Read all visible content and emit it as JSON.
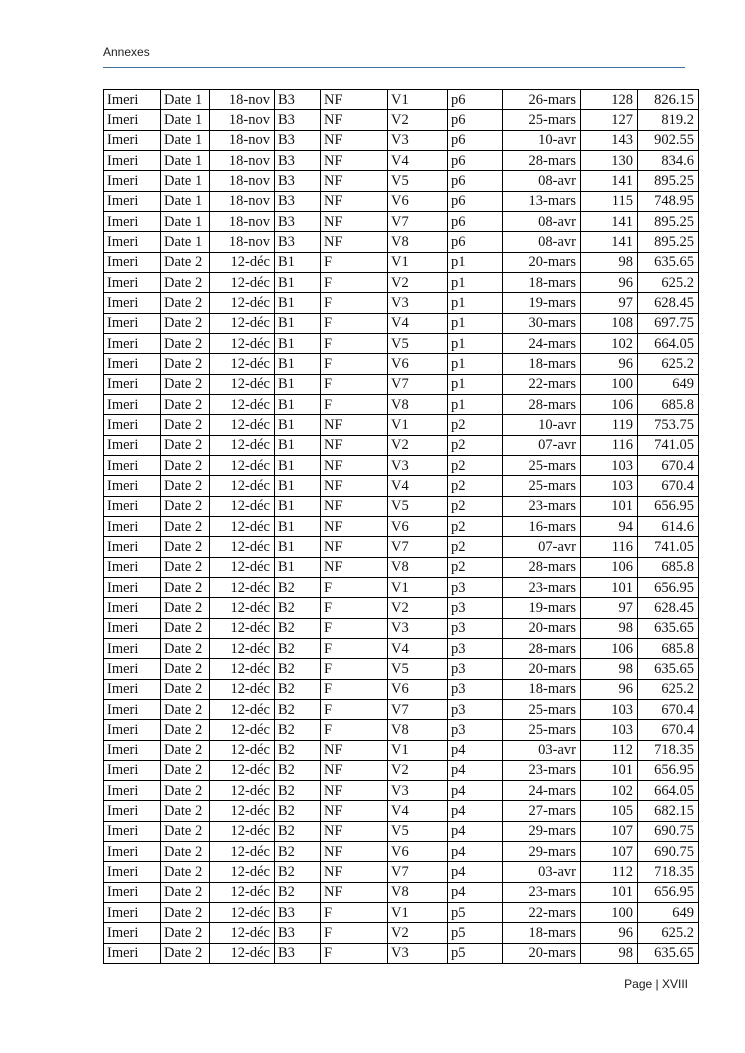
{
  "header": {
    "title": "Annexes"
  },
  "footer": {
    "text": "Page | XVIII"
  },
  "colors": {
    "header_rule": "#44719d",
    "table_border": "#000000",
    "text": "#111111",
    "page_background": "#ffffff"
  },
  "table": {
    "rows": [
      [
        "Imeri",
        "Date 1",
        "18-nov",
        "B3",
        "NF",
        "V1",
        "p6",
        "26-mars",
        "128",
        "826.15"
      ],
      [
        "Imeri",
        "Date 1",
        "18-nov",
        "B3",
        "NF",
        "V2",
        "p6",
        "25-mars",
        "127",
        "819.2"
      ],
      [
        "Imeri",
        "Date 1",
        "18-nov",
        "B3",
        "NF",
        "V3",
        "p6",
        "10-avr",
        "143",
        "902.55"
      ],
      [
        "Imeri",
        "Date 1",
        "18-nov",
        "B3",
        "NF",
        "V4",
        "p6",
        "28-mars",
        "130",
        "834.6"
      ],
      [
        "Imeri",
        "Date 1",
        "18-nov",
        "B3",
        "NF",
        "V5",
        "p6",
        "08-avr",
        "141",
        "895.25"
      ],
      [
        "Imeri",
        "Date 1",
        "18-nov",
        "B3",
        "NF",
        "V6",
        "p6",
        "13-mars",
        "115",
        "748.95"
      ],
      [
        "Imeri",
        "Date 1",
        "18-nov",
        "B3",
        "NF",
        "V7",
        "p6",
        "08-avr",
        "141",
        "895.25"
      ],
      [
        "Imeri",
        "Date 1",
        "18-nov",
        "B3",
        "NF",
        "V8",
        "p6",
        "08-avr",
        "141",
        "895.25"
      ],
      [
        "Imeri",
        "Date 2",
        "12-déc",
        "B1",
        "F",
        "V1",
        "p1",
        "20-mars",
        "98",
        "635.65"
      ],
      [
        "Imeri",
        "Date 2",
        "12-déc",
        "B1",
        "F",
        "V2",
        "p1",
        "18-mars",
        "96",
        "625.2"
      ],
      [
        "Imeri",
        "Date 2",
        "12-déc",
        "B1",
        "F",
        "V3",
        "p1",
        "19-mars",
        "97",
        "628.45"
      ],
      [
        "Imeri",
        "Date 2",
        "12-déc",
        "B1",
        "F",
        "V4",
        "p1",
        "30-mars",
        "108",
        "697.75"
      ],
      [
        "Imeri",
        "Date 2",
        "12-déc",
        "B1",
        "F",
        "V5",
        "p1",
        "24-mars",
        "102",
        "664.05"
      ],
      [
        "Imeri",
        "Date 2",
        "12-déc",
        "B1",
        "F",
        "V6",
        "p1",
        "18-mars",
        "96",
        "625.2"
      ],
      [
        "Imeri",
        "Date 2",
        "12-déc",
        "B1",
        "F",
        "V7",
        "p1",
        "22-mars",
        "100",
        "649"
      ],
      [
        "Imeri",
        "Date 2",
        "12-déc",
        "B1",
        "F",
        "V8",
        "p1",
        "28-mars",
        "106",
        "685.8"
      ],
      [
        "Imeri",
        "Date 2",
        "12-déc",
        "B1",
        "NF",
        "V1",
        "p2",
        "10-avr",
        "119",
        "753.75"
      ],
      [
        "Imeri",
        "Date 2",
        "12-déc",
        "B1",
        "NF",
        "V2",
        "p2",
        "07-avr",
        "116",
        "741.05"
      ],
      [
        "Imeri",
        "Date 2",
        "12-déc",
        "B1",
        "NF",
        "V3",
        "p2",
        "25-mars",
        "103",
        "670.4"
      ],
      [
        "Imeri",
        "Date 2",
        "12-déc",
        "B1",
        "NF",
        "V4",
        "p2",
        "25-mars",
        "103",
        "670.4"
      ],
      [
        "Imeri",
        "Date 2",
        "12-déc",
        "B1",
        "NF",
        "V5",
        "p2",
        "23-mars",
        "101",
        "656.95"
      ],
      [
        "Imeri",
        "Date 2",
        "12-déc",
        "B1",
        "NF",
        "V6",
        "p2",
        "16-mars",
        "94",
        "614.6"
      ],
      [
        "Imeri",
        "Date 2",
        "12-déc",
        "B1",
        "NF",
        "V7",
        "p2",
        "07-avr",
        "116",
        "741.05"
      ],
      [
        "Imeri",
        "Date 2",
        "12-déc",
        "B1",
        "NF",
        "V8",
        "p2",
        "28-mars",
        "106",
        "685.8"
      ],
      [
        "Imeri",
        "Date 2",
        "12-déc",
        "B2",
        "F",
        "V1",
        "p3",
        "23-mars",
        "101",
        "656.95"
      ],
      [
        "Imeri",
        "Date 2",
        "12-déc",
        "B2",
        "F",
        "V2",
        "p3",
        "19-mars",
        "97",
        "628.45"
      ],
      [
        "Imeri",
        "Date 2",
        "12-déc",
        "B2",
        "F",
        "V3",
        "p3",
        "20-mars",
        "98",
        "635.65"
      ],
      [
        "Imeri",
        "Date 2",
        "12-déc",
        "B2",
        "F",
        "V4",
        "p3",
        "28-mars",
        "106",
        "685.8"
      ],
      [
        "Imeri",
        "Date 2",
        "12-déc",
        "B2",
        "F",
        "V5",
        "p3",
        "20-mars",
        "98",
        "635.65"
      ],
      [
        "Imeri",
        "Date 2",
        "12-déc",
        "B2",
        "F",
        "V6",
        "p3",
        "18-mars",
        "96",
        "625.2"
      ],
      [
        "Imeri",
        "Date 2",
        "12-déc",
        "B2",
        "F",
        "V7",
        "p3",
        "25-mars",
        "103",
        "670.4"
      ],
      [
        "Imeri",
        "Date 2",
        "12-déc",
        "B2",
        "F",
        "V8",
        "p3",
        "25-mars",
        "103",
        "670.4"
      ],
      [
        "Imeri",
        "Date 2",
        "12-déc",
        "B2",
        "NF",
        "V1",
        "p4",
        "03-avr",
        "112",
        "718.35"
      ],
      [
        "Imeri",
        "Date 2",
        "12-déc",
        "B2",
        "NF",
        "V2",
        "p4",
        "23-mars",
        "101",
        "656.95"
      ],
      [
        "Imeri",
        "Date 2",
        "12-déc",
        "B2",
        "NF",
        "V3",
        "p4",
        "24-mars",
        "102",
        "664.05"
      ],
      [
        "Imeri",
        "Date 2",
        "12-déc",
        "B2",
        "NF",
        "V4",
        "p4",
        "27-mars",
        "105",
        "682.15"
      ],
      [
        "Imeri",
        "Date 2",
        "12-déc",
        "B2",
        "NF",
        "V5",
        "p4",
        "29-mars",
        "107",
        "690.75"
      ],
      [
        "Imeri",
        "Date 2",
        "12-déc",
        "B2",
        "NF",
        "V6",
        "p4",
        "29-mars",
        "107",
        "690.75"
      ],
      [
        "Imeri",
        "Date 2",
        "12-déc",
        "B2",
        "NF",
        "V7",
        "p4",
        "03-avr",
        "112",
        "718.35"
      ],
      [
        "Imeri",
        "Date 2",
        "12-déc",
        "B2",
        "NF",
        "V8",
        "p4",
        "23-mars",
        "101",
        "656.95"
      ],
      [
        "Imeri",
        "Date 2",
        "12-déc",
        "B3",
        "F",
        "V1",
        "p5",
        "22-mars",
        "100",
        "649"
      ],
      [
        "Imeri",
        "Date 2",
        "12-déc",
        "B3",
        "F",
        "V2",
        "p5",
        "18-mars",
        "96",
        "625.2"
      ],
      [
        "Imeri",
        "Date 2",
        "12-déc",
        "B3",
        "F",
        "V3",
        "p5",
        "20-mars",
        "98",
        "635.65"
      ]
    ]
  }
}
